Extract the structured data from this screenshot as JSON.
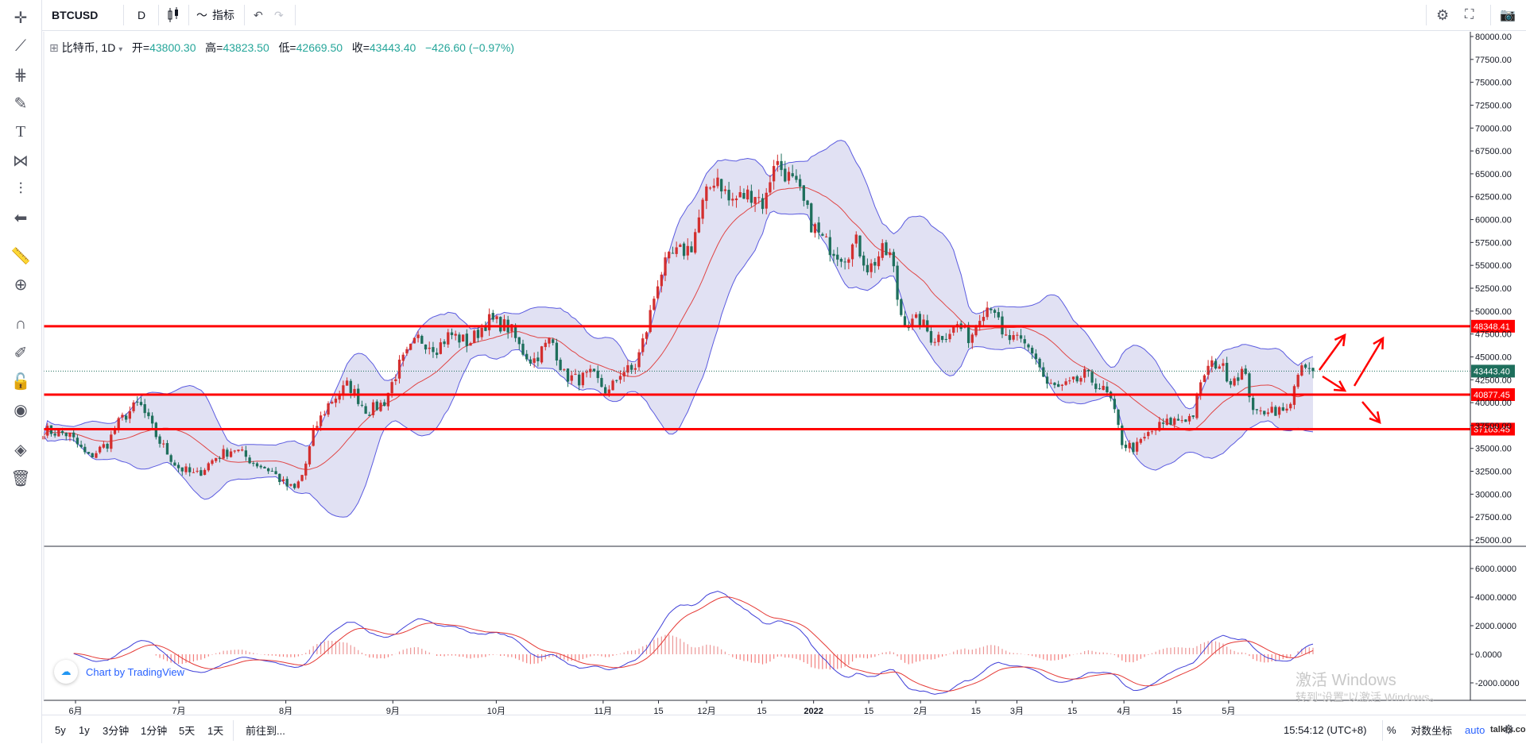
{
  "toolbar": {
    "symbol": "BTCUSD",
    "interval": "D",
    "indicators_label": "指标"
  },
  "legend": {
    "name": "比特币, 1D",
    "open_label": "开=",
    "open": "43800.30",
    "high_label": "高=",
    "high": "43823.50",
    "low_label": "低=",
    "low": "42669.50",
    "close_label": "收=",
    "close": "43443.40",
    "change": "−426.60 (−0.97%)"
  },
  "bottombar": {
    "ranges": [
      "5y",
      "1y",
      "3分钟",
      "1分钟",
      "5天",
      "1天"
    ],
    "goto": "前往到...",
    "clock": "15:54:12 (UTC+8)",
    "percent": "%",
    "log": "对数坐标",
    "auto": "auto"
  },
  "branding": {
    "chart_by": "Chart by TradingView",
    "win_title": "激活 Windows",
    "win_sub": "转到\"设置\"以激活 Windows。",
    "site": "talkfx.com"
  },
  "colors": {
    "up": "#d32f2f",
    "down": "#1e6f5c",
    "band": "#5b5be0",
    "band_fill": "#d9d9f0",
    "mid": "#e04646",
    "level": "#ff0000",
    "macd": "#3f3fd8",
    "signal": "#e53935"
  },
  "chart_data": {
    "type": "candlestick",
    "ylim": [
      25000,
      80000
    ],
    "price_ticks": [
      25000,
      27500,
      30000,
      32500,
      35000,
      37500,
      40000,
      42500,
      45000,
      47500,
      50000,
      52500,
      55000,
      57500,
      60000,
      62500,
      65000,
      67500,
      70000,
      72500,
      75000,
      77500,
      80000
    ],
    "price_tick_labels": [
      "25000.00",
      "27500.00",
      "30000.00",
      "32500.00",
      "35000.00",
      "37500.00",
      "40000.00",
      "42500.00",
      "45000.00",
      "47500.00",
      "50000.00",
      "52500.00",
      "55000.00",
      "57500.00",
      "60000.00",
      "62500.00",
      "65000.00",
      "67500.00",
      "70000.00",
      "72500.00",
      "75000.00",
      "77500.00",
      "80000.00"
    ],
    "x_labels": [
      {
        "t": 0.0,
        "label": "6月"
      },
      {
        "t": 0.0814,
        "label": "7月"
      },
      {
        "t": 0.1657,
        "label": "8月"
      },
      {
        "t": 0.25,
        "label": "9月"
      },
      {
        "t": 0.3315,
        "label": "10月"
      },
      {
        "t": 0.4157,
        "label": "11月"
      },
      {
        "t": 0.4593,
        "label": "15"
      },
      {
        "t": 0.4972,
        "label": "12月"
      },
      {
        "t": 0.5407,
        "label": "15"
      },
      {
        "t": 0.5815,
        "label": "2022"
      },
      {
        "t": 0.625,
        "label": "15"
      },
      {
        "t": 0.6657,
        "label": "2月"
      },
      {
        "t": 0.7094,
        "label": "15"
      },
      {
        "t": 0.7417,
        "label": "3月"
      },
      {
        "t": 0.7853,
        "label": "15"
      },
      {
        "t": 0.826,
        "label": "4月"
      },
      {
        "t": 0.8677,
        "label": "15"
      },
      {
        "t": 0.9085,
        "label": "5月"
      }
    ],
    "levels": [
      {
        "value": 48348.41,
        "label": "48348.41"
      },
      {
        "value": 40877.45,
        "label": "40877.45"
      },
      {
        "value": 37103.45,
        "label": "37103.45"
      }
    ],
    "last_price": {
      "value": 43443.4,
      "label": "43443.40"
    },
    "anchors": [
      [
        0.0,
        37000
      ],
      [
        0.02,
        36500
      ],
      [
        0.035,
        34000
      ],
      [
        0.05,
        35500
      ],
      [
        0.06,
        38000
      ],
      [
        0.075,
        40000
      ],
      [
        0.09,
        36000
      ],
      [
        0.105,
        33000
      ],
      [
        0.12,
        32000
      ],
      [
        0.135,
        34000
      ],
      [
        0.15,
        35000
      ],
      [
        0.165,
        33500
      ],
      [
        0.18,
        32500
      ],
      [
        0.19,
        31000
      ],
      [
        0.198,
        30500
      ],
      [
        0.205,
        32500
      ],
      [
        0.213,
        37000
      ],
      [
        0.225,
        40000
      ],
      [
        0.24,
        42000
      ],
      [
        0.255,
        39000
      ],
      [
        0.268,
        40000
      ],
      [
        0.28,
        44000
      ],
      [
        0.295,
        47000
      ],
      [
        0.31,
        46000
      ],
      [
        0.32,
        47500
      ],
      [
        0.335,
        46500
      ],
      [
        0.35,
        49000
      ],
      [
        0.362,
        48500
      ],
      [
        0.368,
        48000
      ],
      [
        0.375,
        46000
      ],
      [
        0.385,
        44500
      ],
      [
        0.4,
        47000
      ],
      [
        0.41,
        43000
      ],
      [
        0.42,
        42500
      ],
      [
        0.432,
        43000
      ],
      [
        0.445,
        41000
      ],
      [
        0.455,
        43500
      ],
      [
        0.465,
        43500
      ],
      [
        0.475,
        48000
      ],
      [
        0.485,
        54000
      ],
      [
        0.495,
        56000
      ],
      [
        0.51,
        57000
      ],
      [
        0.52,
        62000
      ],
      [
        0.53,
        65000
      ],
      [
        0.54,
        62000
      ],
      [
        0.55,
        62500
      ],
      [
        0.56,
        63000
      ],
      [
        0.568,
        61500
      ],
      [
        0.575,
        66500
      ],
      [
        0.585,
        65000
      ],
      [
        0.595,
        63000
      ],
      [
        0.605,
        59500
      ],
      [
        0.615,
        57500
      ],
      [
        0.63,
        56000
      ],
      [
        0.64,
        57500
      ],
      [
        0.65,
        54500
      ],
      [
        0.66,
        56500
      ],
      [
        0.668,
        56000
      ],
      [
        0.674,
        50000
      ],
      [
        0.682,
        48500
      ],
      [
        0.69,
        49000
      ],
      [
        0.7,
        47000
      ],
      [
        0.71,
        47500
      ],
      [
        0.72,
        48500
      ],
      [
        0.73,
        47000
      ],
      [
        0.738,
        50000
      ],
      [
        0.748,
        51000
      ],
      [
        0.755,
        47000
      ],
      [
        0.76,
        47000
      ],
      [
        0.77,
        46500
      ],
      [
        0.78,
        45500
      ],
      [
        0.79,
        42000
      ],
      [
        0.8,
        41500
      ],
      [
        0.81,
        42000
      ],
      [
        0.82,
        43000
      ],
      [
        0.83,
        42000
      ],
      [
        0.84,
        40500
      ],
      [
        0.85,
        35500
      ],
      [
        0.86,
        35000
      ],
      [
        0.87,
        36500
      ],
      [
        0.88,
        37500
      ],
      [
        0.89,
        38000
      ],
      [
        0.905,
        38500
      ],
      [
        0.915,
        43500
      ],
      [
        0.925,
        44500
      ],
      [
        0.935,
        42500
      ],
      [
        0.945,
        43500
      ],
      [
        0.955,
        38500
      ],
      [
        0.965,
        39500
      ],
      [
        0.975,
        39000
      ],
      [
        0.98,
        39000
      ],
      [
        0.985,
        42000
      ],
      [
        0.993,
        43800
      ],
      [
        1.0,
        43443
      ]
    ],
    "macd": {
      "ylim": [
        -3000,
        7000
      ],
      "ticks": [
        -2000,
        0,
        2000,
        4000,
        6000
      ],
      "tick_labels": [
        "-2000.0000",
        "0.0000",
        "2000.0000",
        "4000.0000",
        "6000.0000"
      ]
    }
  }
}
